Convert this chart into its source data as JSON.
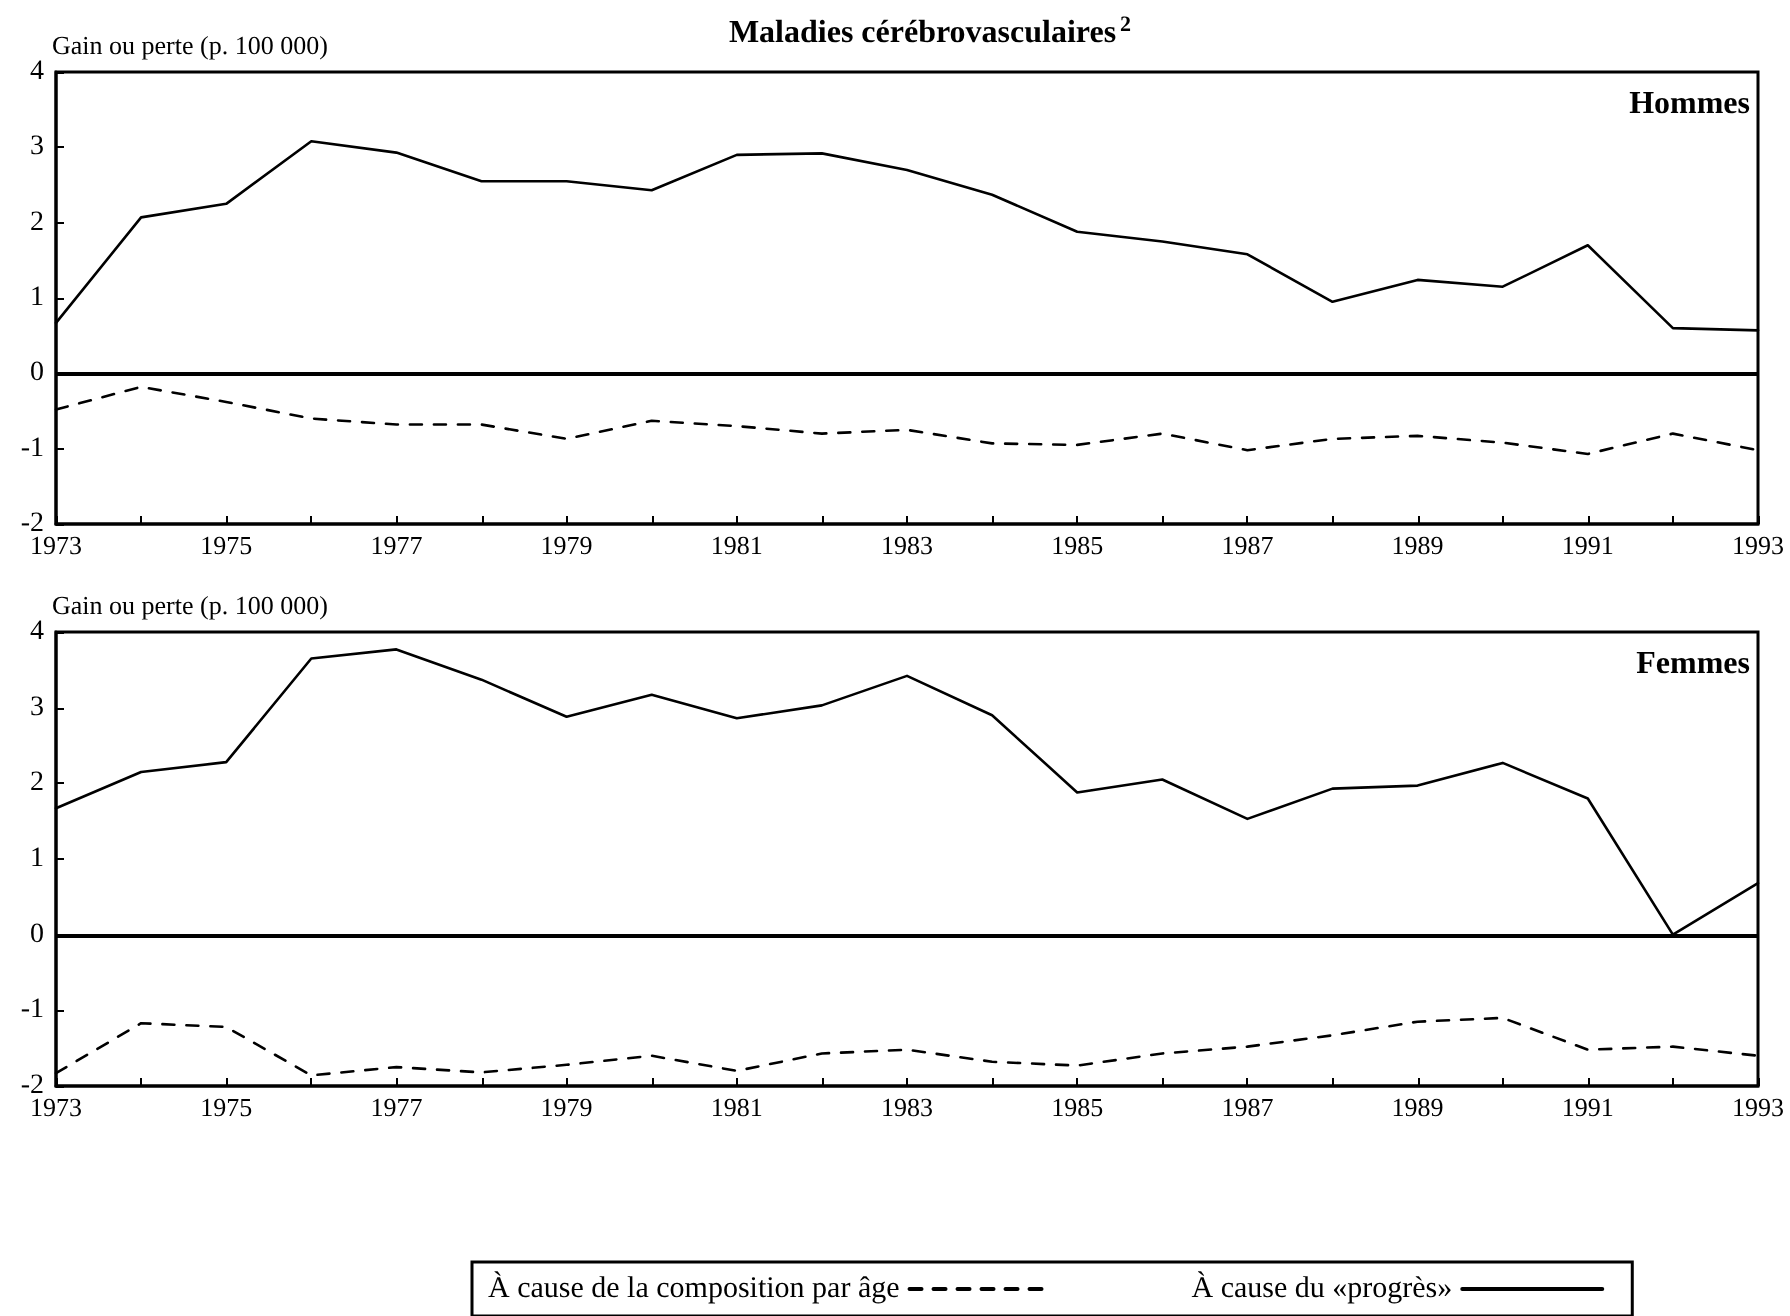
{
  "chart_data": [
    {
      "type": "line",
      "title": "Maladies cérébrovasculaires$^{2}$",
      "ylabel": "Gain ou perte (p. 100 000)",
      "annotations": [
        "Hommes"
      ],
      "x": [
        1973,
        1974,
        1975,
        1976,
        1977,
        1978,
        1979,
        1980,
        1981,
        1982,
        1983,
        1984,
        1985,
        1986,
        1987,
        1988,
        1989,
        1990,
        1991,
        1992,
        1993
      ],
      "series": [
        {
          "color": "#000000",
          "line_style": "dashed",
          "values": [
            -0.48,
            -0.18,
            -0.38,
            -0.6,
            -0.68,
            -0.68,
            -0.87,
            -0.63,
            -0.7,
            -0.8,
            -0.75,
            -0.93,
            -0.95,
            -0.8,
            -1.02,
            -0.87,
            -0.83,
            -0.92,
            -1.07,
            -0.8,
            -1.02
          ]
        },
        {
          "color": "#000000",
          "line_style": "solid",
          "values": [
            0.67,
            2.07,
            2.25,
            3.08,
            2.93,
            2.55,
            2.55,
            2.43,
            2.9,
            2.92,
            2.7,
            2.37,
            1.88,
            1.75,
            1.58,
            0.95,
            1.24,
            1.15,
            1.7,
            0.6,
            0.57
          ]
        }
      ],
      "xlim": [
        1973,
        1993
      ],
      "xticks": [
        1973,
        {
          "value": 1974,
          "label": null
        },
        1975,
        {
          "value": 1976,
          "label": null
        },
        1977,
        {
          "value": 1978,
          "label": null
        },
        1979,
        {
          "value": 1980,
          "label": null
        },
        1981,
        {
          "value": 1982,
          "label": null
        },
        1983,
        {
          "value": 1984,
          "label": null
        },
        1985,
        {
          "value": 1986,
          "label": null
        },
        1987,
        {
          "value": 1988,
          "label": null
        },
        1989,
        {
          "value": 1990,
          "label": null
        },
        1991,
        {
          "value": 1992,
          "label": null
        },
        1993
      ],
      "ylim": [
        -2,
        4
      ],
      "yticks": [
        -2,
        -1,
        0,
        1,
        2,
        3,
        4
      ],
      "ref_lines": [
        {
          "axis": "y",
          "value": 0,
          "color": "#000000"
        }
      ],
      "grid": false,
      "legend": false,
      "marker": "none"
    },
    {
      "type": "line",
      "ylabel": "Gain ou perte (p. 100 000)",
      "annotations": [
        "Femmes"
      ],
      "x": [
        1973,
        1974,
        1975,
        1976,
        1977,
        1978,
        1979,
        1980,
        1981,
        1982,
        1983,
        1984,
        1985,
        1986,
        1987,
        1988,
        1989,
        1990,
        1991,
        1992,
        1993
      ],
      "series": [
        {
          "name": "À cause de la composition par âge",
          "color": "#000000",
          "line_style": "dashed",
          "values": [
            -1.83,
            -1.17,
            -1.22,
            -1.86,
            -1.75,
            -1.82,
            -1.72,
            -1.6,
            -1.8,
            -1.57,
            -1.52,
            -1.68,
            -1.73,
            -1.57,
            -1.48,
            -1.33,
            -1.15,
            -1.1,
            -1.52,
            -1.48,
            -1.6
          ]
        },
        {
          "name": "À cause du «progrès»",
          "color": "#000000",
          "line_style": "solid",
          "values": [
            1.67,
            2.15,
            2.28,
            3.65,
            3.77,
            3.37,
            2.88,
            3.17,
            2.86,
            3.03,
            3.42,
            2.9,
            1.88,
            2.05,
            1.53,
            1.93,
            1.97,
            2.27,
            1.8,
            0.0,
            0.68
          ]
        }
      ],
      "xlim": [
        1973,
        1993
      ],
      "xticks": [
        1973,
        {
          "value": 1974,
          "label": null
        },
        1975,
        {
          "value": 1976,
          "label": null
        },
        1977,
        {
          "value": 1978,
          "label": null
        },
        1979,
        {
          "value": 1980,
          "label": null
        },
        1981,
        {
          "value": 1982,
          "label": null
        },
        1983,
        {
          "value": 1984,
          "label": null
        },
        1985,
        {
          "value": 1986,
          "label": null
        },
        1987,
        {
          "value": 1988,
          "label": null
        },
        1989,
        {
          "value": 1990,
          "label": null
        },
        1991,
        {
          "value": 1992,
          "label": null
        },
        1993
      ],
      "ylim": [
        -2,
        4
      ],
      "yticks": [
        -2,
        -1,
        0,
        1,
        2,
        3,
        4
      ],
      "ref_lines": [
        {
          "axis": "y",
          "value": 0,
          "color": "#000000"
        }
      ],
      "grid": false,
      "legend": "bottom",
      "marker": "none"
    }
  ]
}
